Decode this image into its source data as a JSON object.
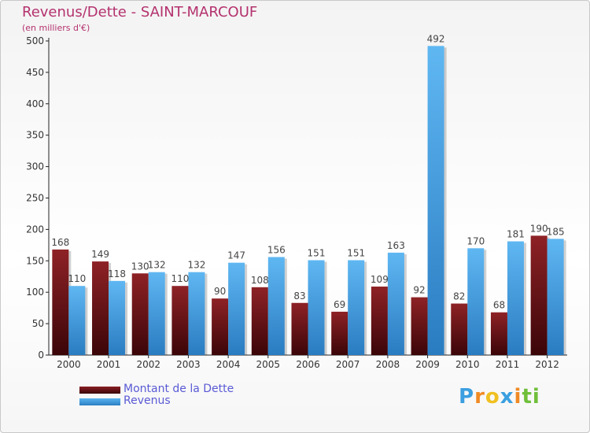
{
  "chart_data": {
    "type": "bar",
    "title": "Revenus/Dette - SAINT-MARCOUF",
    "subtitle": "(en milliers d'€)",
    "xlabel": "",
    "ylabel": "",
    "ylim": [
      0,
      500
    ],
    "yticks": [
      0,
      50,
      100,
      150,
      200,
      250,
      300,
      350,
      400,
      450,
      500
    ],
    "grid": false,
    "legend_position": "bottom-left",
    "categories": [
      "2000",
      "2001",
      "2002",
      "2003",
      "2004",
      "2005",
      "2006",
      "2007",
      "2008",
      "2009",
      "2010",
      "2011",
      "2012"
    ],
    "series": [
      {
        "name": "Montant de la Dette",
        "color": "#7a1a1e",
        "values": [
          168,
          149,
          130,
          110,
          90,
          108,
          83,
          69,
          109,
          92,
          82,
          68,
          190
        ]
      },
      {
        "name": "Revenus",
        "color": "#4aa3e6",
        "values": [
          110,
          118,
          132,
          132,
          147,
          156,
          151,
          151,
          163,
          492,
          170,
          181,
          185
        ]
      }
    ]
  },
  "logo": {
    "letters": [
      "P",
      "r",
      "o",
      "x",
      "i",
      "t",
      "i"
    ],
    "colors": [
      "#3b9fe0",
      "#f08a24",
      "#f0c020",
      "#3b9fe0",
      "#f08a24",
      "#6fbf3a",
      "#6fbf3a"
    ]
  }
}
